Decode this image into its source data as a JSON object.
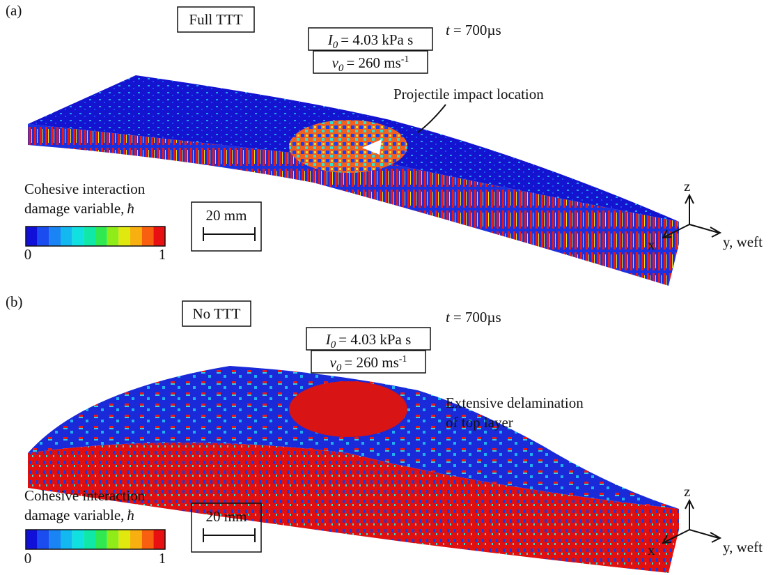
{
  "colormap": [
    "#1010d8",
    "#1a4cf0",
    "#1a84f4",
    "#14b8f0",
    "#10e0e0",
    "#10e8a8",
    "#30e850",
    "#90ec18",
    "#e0e810",
    "#f8b010",
    "#f86010",
    "#e81010"
  ],
  "panels": [
    {
      "label": "(a)",
      "case": "Full TTT",
      "impulse": {
        "symbol": "I",
        "subscript": "0",
        "text": "= 4.03 kPa s"
      },
      "velocity": {
        "symbol": "v",
        "subscript": "0",
        "text": "= 260 ms",
        "superscript": "-1"
      },
      "time": {
        "symbol": "t",
        "text": "= 700µs"
      },
      "annotation": [
        "Projectile impact location"
      ],
      "legend": {
        "title": [
          "Cohesive interaction",
          "damage variable,"
        ],
        "symbol": "ħ",
        "min": "0",
        "max": "1"
      },
      "scale_bar": "20 mm",
      "axes": {
        "z": "z",
        "x": "x",
        "y": "y, weft"
      }
    },
    {
      "label": "(b)",
      "case": "No TTT",
      "impulse": {
        "symbol": "I",
        "subscript": "0",
        "text": "= 4.03 kPa s"
      },
      "velocity": {
        "symbol": "v",
        "subscript": "0",
        "text": "= 260 ms",
        "superscript": "-1"
      },
      "time": {
        "symbol": "t",
        "text": "= 700µs"
      },
      "annotation": [
        "Extensive delamination",
        "of top layer"
      ],
      "legend": {
        "title": [
          "Cohesive interaction",
          "damage variable,"
        ],
        "symbol": "ħ",
        "min": "0",
        "max": "1"
      },
      "scale_bar": "20 mm",
      "axes": {
        "z": "z",
        "x": "x",
        "y": "y, weft"
      }
    }
  ]
}
